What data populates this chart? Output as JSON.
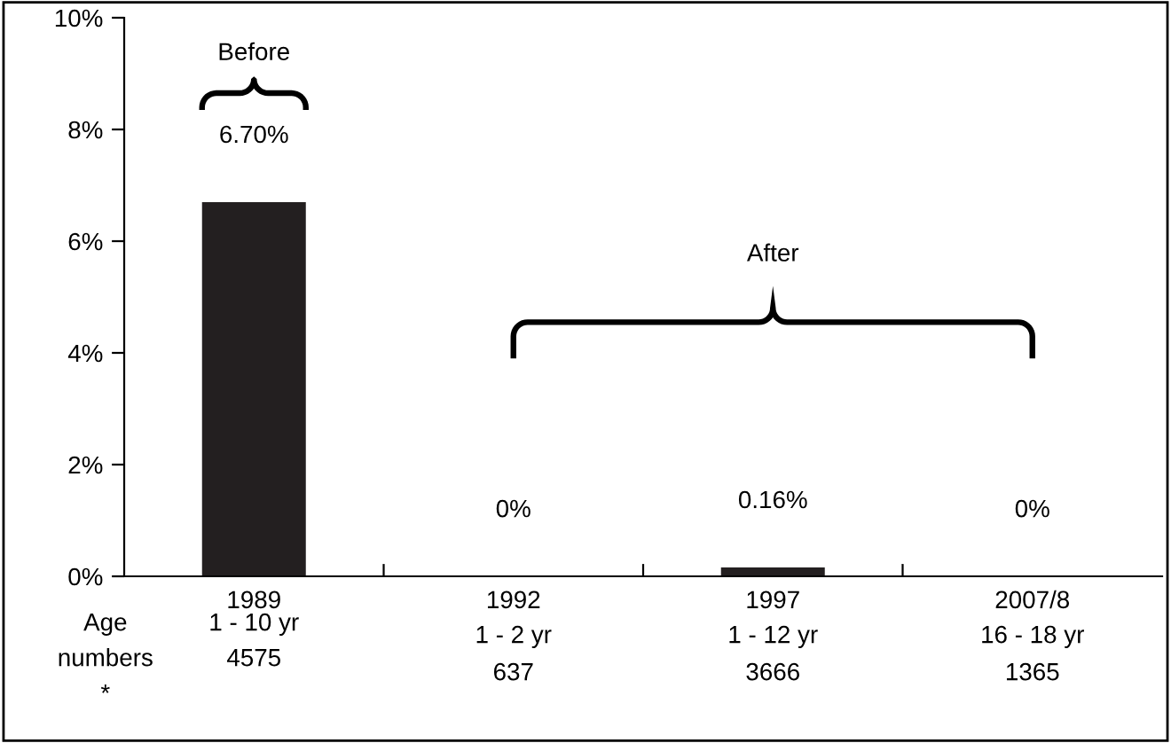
{
  "chart_data": {
    "type": "bar",
    "categories": [
      "1989",
      "1992",
      "1997",
      "2007/8"
    ],
    "values": [
      6.7,
      0,
      0.16,
      0
    ],
    "color": "#231f20",
    "value_labels": [
      "6.70%",
      "0%",
      "0.16%",
      "0%"
    ],
    "ylim": [
      0,
      10
    ],
    "yticks": [
      {
        "value": 0,
        "label": "0%"
      },
      {
        "value": 2,
        "label": "2%"
      },
      {
        "value": 4,
        "label": "4%"
      },
      {
        "value": 6,
        "label": "6%"
      },
      {
        "value": 8,
        "label": "8%"
      },
      {
        "value": 10,
        "label": "10%"
      }
    ],
    "grid": false,
    "legend": false,
    "annotations": [
      "Before",
      "After",
      "Age",
      "numbers",
      "*",
      "1 - 10 yr",
      "4575",
      "1 - 2 yr",
      "637",
      "1 - 12 yr",
      "3666",
      "16 - 18 yr",
      "1365"
    ]
  }
}
